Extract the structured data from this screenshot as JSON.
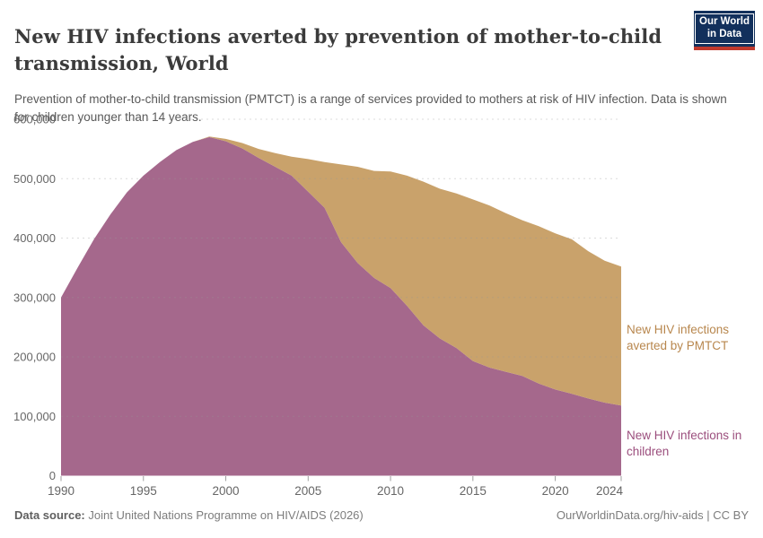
{
  "header": {
    "title": "New HIV infections averted by prevention of mother-to-child transmission, World",
    "subtitle": "Prevention of mother-to-child transmission (PMTCT) is a range of services provided to mothers at risk of HIV infection. Data is shown for children younger than 14 years.",
    "logo_line1": "Our World",
    "logo_line2": "in Data",
    "logo_bg_color": "#12305c",
    "logo_bar_color": "#c0392d"
  },
  "chart_data": {
    "type": "area",
    "stacked": true,
    "title": "New HIV infections averted by prevention of mother-to-child transmission, World",
    "xlabel": "",
    "ylabel": "",
    "x": [
      1990,
      1991,
      1992,
      1993,
      1994,
      1995,
      1996,
      1997,
      1998,
      1999,
      2000,
      2001,
      2002,
      2003,
      2004,
      2005,
      2006,
      2007,
      2008,
      2009,
      2010,
      2011,
      2012,
      2013,
      2014,
      2015,
      2016,
      2017,
      2018,
      2019,
      2020,
      2021,
      2022,
      2023,
      2024
    ],
    "series": [
      {
        "name": "New HIV infections in children",
        "color": "#a5688c",
        "label_color": "#9b4e7d",
        "values": [
          300000,
          350000,
          398000,
          440000,
          477000,
          505000,
          528000,
          548000,
          562000,
          570000,
          563000,
          551000,
          535000,
          520000,
          505000,
          478000,
          451000,
          393000,
          358000,
          333000,
          316000,
          286000,
          253000,
          231000,
          215000,
          193000,
          182000,
          175000,
          168000,
          155000,
          145000,
          138000,
          130000,
          123000,
          118000
        ]
      },
      {
        "name": "New HIV infections averted by PMTCT",
        "color": "#c9a26b",
        "label_color": "#b8874e",
        "values": [
          0,
          0,
          0,
          0,
          0,
          0,
          0,
          0,
          0,
          1000,
          4000,
          9000,
          15000,
          23000,
          32000,
          55000,
          77000,
          131000,
          162000,
          180000,
          196000,
          219000,
          242000,
          252000,
          260000,
          272000,
          273000,
          267000,
          262000,
          265000,
          263000,
          260000,
          248000,
          239000,
          234000
        ]
      }
    ],
    "ylim": [
      0,
      600000
    ],
    "yticks": [
      0,
      100000,
      200000,
      300000,
      400000,
      500000,
      600000
    ],
    "xticks": [
      1990,
      1995,
      2000,
      2005,
      2010,
      2015,
      2020,
      2024
    ],
    "grid": true,
    "grid_style": "dashed",
    "legend_position": "right-direct-labels",
    "axis_text_color": "#666666"
  },
  "footer": {
    "source_label": "Data source:",
    "source_text": "Joint United Nations Programme on HIV/AIDS (2026)",
    "rights": "OurWorldinData.org/hiv-aids | CC BY"
  }
}
